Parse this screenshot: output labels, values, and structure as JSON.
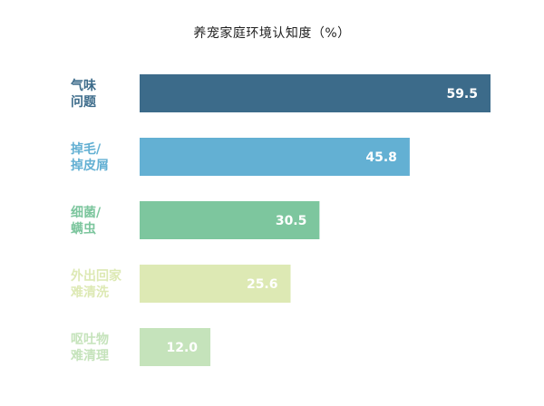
{
  "chart_data": {
    "type": "bar",
    "orientation": "horizontal",
    "title": "养宠家庭环境认知度（%）",
    "categories": [
      [
        "气味",
        "问题"
      ],
      [
        "掉毛/",
        "掉皮屑"
      ],
      [
        "细菌/",
        "螨虫"
      ],
      [
        "外出回家",
        "难清洗"
      ],
      [
        "呕吐物",
        "难清理"
      ]
    ],
    "values": [
      59.5,
      45.8,
      30.5,
      25.6,
      12.0
    ],
    "value_labels": [
      "59.5",
      "45.8",
      "30.5",
      "25.6",
      "12.0"
    ],
    "bar_colors": [
      "#3c6b8a",
      "#63b0d3",
      "#7dc69e",
      "#dde9b4",
      "#c5e3bb"
    ],
    "label_colors": [
      "#3c6b8a",
      "#63b0d3",
      "#7dc69e",
      "#dde9b4",
      "#c5e3bb"
    ],
    "xlim": [
      0,
      60
    ],
    "grid": false,
    "legend": "none"
  }
}
